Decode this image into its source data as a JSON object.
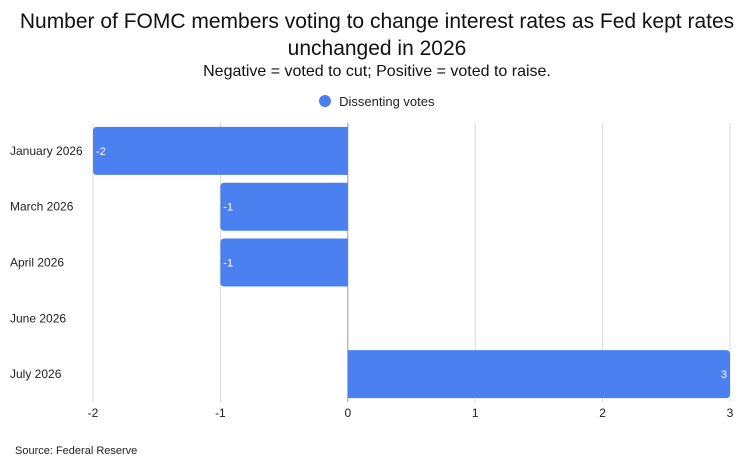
{
  "title": "Number of FOMC members voting to change interest rates as Fed kept rates unchanged in 2026",
  "subtitle": "Negative = voted to cut; Positive = voted to raise.",
  "source": "Source: Federal Reserve",
  "colors": {
    "bar": "#4a80f0",
    "grid": "#d9d9d9",
    "zero_line": "#9a9a9a"
  },
  "chart_data": {
    "type": "bar",
    "orientation": "horizontal",
    "title": "Number of FOMC members voting to change interest rates as Fed kept rates unchanged in 2026",
    "subtitle": "Negative = voted to cut; Positive = voted to raise.",
    "categories": [
      "January 2026",
      "March 2026",
      "April 2026",
      "June 2026",
      "July 2026"
    ],
    "series": [
      {
        "name": "Dissenting votes",
        "values": [
          -2,
          -1,
          -1,
          0,
          3
        ]
      }
    ],
    "data_labels": [
      "-2",
      "-1",
      "-1",
      "",
      "3"
    ],
    "xlim": [
      -2,
      3
    ],
    "xticks": [
      -2,
      -1,
      0,
      1,
      2,
      3
    ],
    "grid": true,
    "legend": "top-center"
  }
}
